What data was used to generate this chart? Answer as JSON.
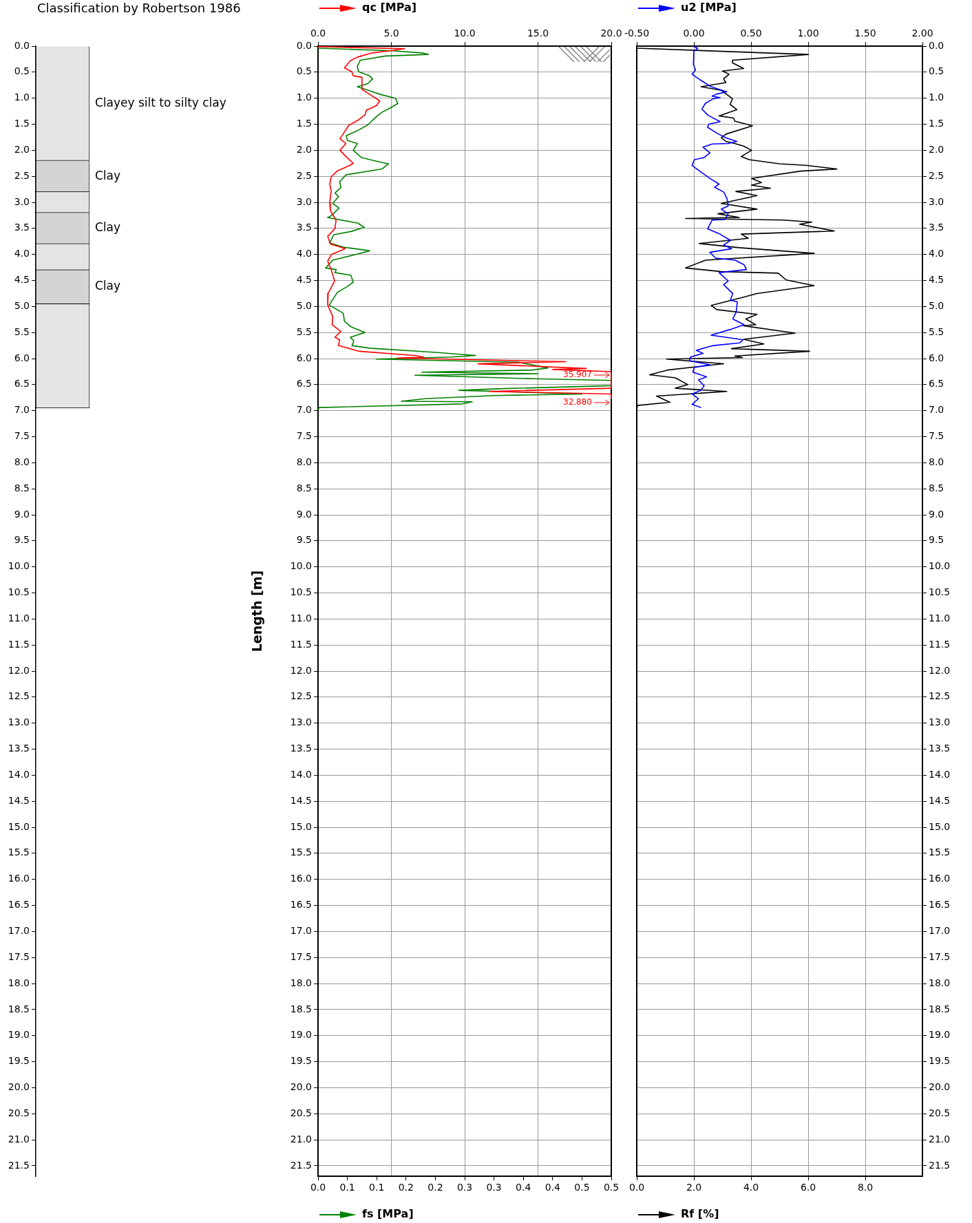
{
  "chart_data": [
    {
      "type": "bar",
      "title": "Classification by Robertson 1986",
      "categories": [
        null
      ],
      "stacked": true,
      "tick_labels": "y",
      "ylim": [
        21.7,
        0
      ],
      "yticks": [
        {
          "value": 0,
          "label": "0.0"
        },
        {
          "value": 0.5,
          "label": "0.5"
        },
        {
          "value": 1,
          "label": "1.0"
        },
        {
          "value": 1.5,
          "label": "1.5"
        },
        {
          "value": 2,
          "label": "2.0"
        },
        {
          "value": 2.5,
          "label": "2.5"
        },
        {
          "value": 3,
          "label": "3.0"
        },
        {
          "value": 3.5,
          "label": "3.5"
        },
        {
          "value": 4,
          "label": "4.0"
        },
        {
          "value": 4.5,
          "label": "4.5"
        },
        {
          "value": 5,
          "label": "5.0"
        },
        {
          "value": 5.5,
          "label": "5.5"
        },
        {
          "value": 6,
          "label": "6.0"
        },
        {
          "value": 6.5,
          "label": "6.5"
        },
        {
          "value": 7,
          "label": "7.0"
        },
        {
          "value": 7.5,
          "label": "7.5"
        },
        {
          "value": 8,
          "label": "8.0"
        },
        {
          "value": 8.5,
          "label": "8.5"
        },
        {
          "value": 9,
          "label": "9.0"
        },
        {
          "value": 9.5,
          "label": "9.5"
        },
        {
          "value": 10,
          "label": "10.0"
        },
        {
          "value": 10.5,
          "label": "10.5"
        },
        {
          "value": 11,
          "label": "11.0"
        },
        {
          "value": 11.5,
          "label": "11.5"
        },
        {
          "value": 12,
          "label": "12.0"
        },
        {
          "value": 12.5,
          "label": "12.5"
        },
        {
          "value": 13,
          "label": "13.0"
        },
        {
          "value": 13.5,
          "label": "13.5"
        },
        {
          "value": 14,
          "label": "14.0"
        },
        {
          "value": 14.5,
          "label": "14.5"
        },
        {
          "value": 15,
          "label": "15.0"
        },
        {
          "value": 15.5,
          "label": "15.5"
        },
        {
          "value": 16,
          "label": "16.0"
        },
        {
          "value": 16.5,
          "label": "16.5"
        },
        {
          "value": 17,
          "label": "17.0"
        },
        {
          "value": 17.5,
          "label": "17.5"
        },
        {
          "value": 18,
          "label": "18.0"
        },
        {
          "value": 18.5,
          "label": "18.5"
        },
        {
          "value": 19,
          "label": "19.0"
        },
        {
          "value": 19.5,
          "label": "19.5"
        },
        {
          "value": 20,
          "label": "20.0"
        },
        {
          "value": 20.5,
          "label": "20.5"
        },
        {
          "value": 21,
          "label": "21.0"
        },
        {
          "value": 21.5,
          "label": "21.5"
        }
      ],
      "series": [
        {
          "name": "Clayey silt to silty clay",
          "color": "#e4e4e4",
          "values": [
            2.2
          ]
        },
        {
          "name": "Clay",
          "color": "#d4d4d4",
          "values": [
            0.6
          ]
        },
        {
          "color": "#e4e4e4",
          "values": [
            0.4
          ]
        },
        {
          "name": "Clay",
          "color": "#d4d4d4",
          "values": [
            0.6
          ]
        },
        {
          "color": "#e4e4e4",
          "values": [
            0.5
          ]
        },
        {
          "name": "Clay",
          "color": "#d4d4d4",
          "values": [
            0.65
          ]
        },
        {
          "color": "#e4e4e4",
          "values": [
            2.0
          ]
        }
      ]
    },
    {
      "type": "line",
      "ylabel": "Length [m]",
      "ylim": [
        21.7,
        0
      ],
      "yticks": [
        {
          "value": 0,
          "label": "0.0"
        },
        {
          "value": 0.5,
          "label": "0.5"
        },
        {
          "value": 1,
          "label": "1.0"
        },
        {
          "value": 1.5,
          "label": "1.5"
        },
        {
          "value": 2,
          "label": "2.0"
        },
        {
          "value": 2.5,
          "label": "2.5"
        },
        {
          "value": 3,
          "label": "3.0"
        },
        {
          "value": 3.5,
          "label": "3.5"
        },
        {
          "value": 4,
          "label": "4.0"
        },
        {
          "value": 4.5,
          "label": "4.5"
        },
        {
          "value": 5,
          "label": "5.0"
        },
        {
          "value": 5.5,
          "label": "5.5"
        },
        {
          "value": 6,
          "label": "6.0"
        },
        {
          "value": 6.5,
          "label": "6.5"
        },
        {
          "value": 7,
          "label": "7.0"
        },
        {
          "value": 7.5,
          "label": "7.5"
        },
        {
          "value": 8,
          "label": "8.0"
        },
        {
          "value": 8.5,
          "label": "8.5"
        },
        {
          "value": 9,
          "label": "9.0"
        },
        {
          "value": 9.5,
          "label": "9.5"
        },
        {
          "value": 10,
          "label": "10.0"
        },
        {
          "value": 10.5,
          "label": "10.5"
        },
        {
          "value": 11,
          "label": "11.0"
        },
        {
          "value": 11.5,
          "label": "11.5"
        },
        {
          "value": 12,
          "label": "12.0"
        },
        {
          "value": 12.5,
          "label": "12.5"
        },
        {
          "value": 13,
          "label": "13.0"
        },
        {
          "value": 13.5,
          "label": "13.5"
        },
        {
          "value": 14,
          "label": "14.0"
        },
        {
          "value": 14.5,
          "label": "14.5"
        },
        {
          "value": 15,
          "label": "15.0"
        },
        {
          "value": 15.5,
          "label": "15.5"
        },
        {
          "value": 16,
          "label": "16.0"
        },
        {
          "value": 16.5,
          "label": "16.5"
        },
        {
          "value": 17,
          "label": "17.0"
        },
        {
          "value": 17.5,
          "label": "17.5"
        },
        {
          "value": 18,
          "label": "18.0"
        },
        {
          "value": 18.5,
          "label": "18.5"
        },
        {
          "value": 19,
          "label": "19.0"
        },
        {
          "value": 19.5,
          "label": "19.5"
        },
        {
          "value": 20,
          "label": "20.0"
        },
        {
          "value": 20.5,
          "label": "20.5"
        },
        {
          "value": 21,
          "label": "21.0"
        },
        {
          "value": 21.5,
          "label": "21.5"
        }
      ],
      "x2lim": [
        0,
        20
      ],
      "x2ticks": [
        {
          "value": 0,
          "label": "0.0"
        },
        {
          "value": 5,
          "label": "5.0"
        },
        {
          "value": 10,
          "label": "10.0"
        },
        {
          "value": 15,
          "label": "15.0"
        },
        {
          "value": 20,
          "label": "20.0"
        }
      ],
      "xlim": [
        0,
        0.5
      ],
      "xticks": [
        {
          "value": 0,
          "label": "0.0"
        },
        {
          "value": 0.05,
          "label": "0.1"
        },
        {
          "value": 0.1,
          "label": "0.1"
        },
        {
          "value": 0.15,
          "label": "0.2"
        },
        {
          "value": 0.2,
          "label": "0.2"
        },
        {
          "value": 0.25,
          "label": "0.3"
        },
        {
          "value": 0.3,
          "label": "0.3"
        },
        {
          "value": 0.35,
          "label": "0.4"
        },
        {
          "value": 0.4,
          "label": "0.4"
        },
        {
          "value": 0.45,
          "label": "0.5"
        },
        {
          "value": 0.5,
          "label": "0.5"
        }
      ],
      "grid": true,
      "legend": "top",
      "annotations": [
        "35.907",
        "32.880"
      ],
      "series": [
        {
          "name": "qc [MPa]",
          "color": "#ff0000",
          "axis": "x2",
          "x": [
            0,
            5.9,
            4.9,
            3.7,
            2.7,
            2.2,
            1.8,
            2.3,
            2.4,
            3.0,
            3.0,
            3.7,
            4.2,
            4.0,
            3.3,
            3.2,
            2.8,
            2.1,
            1.8,
            1.5,
            1.9,
            1.5,
            1.9,
            2.4,
            2.1,
            1.3,
            0.9,
            0.8,
            0.9,
            0.8,
            0.84,
            1.23,
            1.16,
            0.66,
            0.84,
            1.86,
            0.92,
            0.66,
            0.92,
            1.13,
            0.69,
            0.66,
            1.0,
            0.97,
            1.55,
            1.16,
            1.47,
            1.39,
            2.8,
            6.6,
            7.2,
            5.4,
            16.9,
            10.9,
            18.3,
            16.0,
            20,
            20,
            20,
            11.7,
            20,
            20
          ],
          "values": [
            0.01,
            0.05,
            0.09,
            0.13,
            0.21,
            0.28,
            0.42,
            0.49,
            0.57,
            0.6,
            0.83,
            0.96,
            1.05,
            1.14,
            1.23,
            1.32,
            1.41,
            1.52,
            1.65,
            1.78,
            1.87,
            2.0,
            2.12,
            2.25,
            2.3,
            2.4,
            2.51,
            2.65,
            2.78,
            3.0,
            3.16,
            3.34,
            3.5,
            3.65,
            3.8,
            3.89,
            4.0,
            4.13,
            4.31,
            4.51,
            4.75,
            4.97,
            5.19,
            5.35,
            5.48,
            5.59,
            5.64,
            5.75,
            5.86,
            5.94,
            5.97,
            5.99,
            6.06,
            6.1,
            6.19,
            6.21,
            6.25,
            6.35,
            6.57,
            6.63,
            6.68,
            6.77
          ]
        },
        {
          "name": "fs [MPa]",
          "color": "#008000",
          "x": [
            0,
            0.127,
            0.177,
            0.188,
            0.115,
            0.072,
            0.067,
            0.069,
            0.088,
            0.093,
            0.085,
            0.067,
            0.091,
            0.107,
            0.132,
            0.136,
            0.123,
            0.109,
            0.099,
            0.084,
            0.066,
            0.048,
            0.05,
            0.067,
            0.06,
            0.074,
            0.107,
            0.12,
            0.109,
            0.048,
            0.037,
            0.039,
            0.029,
            0.035,
            0.025,
            0.036,
            0.021,
            0.016,
            0.068,
            0.079,
            0.056,
            0.027,
            0.02,
            0.043,
            0.076,
            0.088,
            0.068,
            0.025,
            0.013,
            0.031,
            0.029,
            0.056,
            0.06,
            0.052,
            0.033,
            0.019,
            0.043,
            0.045,
            0.056,
            0.08,
            0.055,
            0.061,
            0.058,
            0.088,
            0.2,
            0.269,
            0.228,
            0.099,
            0.341,
            0.392,
            0.365,
            0.177,
            0.375,
            0.165,
            0.378,
            0.5,
            0.5,
            0.308,
            0.24,
            0.45,
            0.3,
            0.183,
            0.142,
            0.263,
            0.246,
            0.002,
            0
          ],
          "values": [
            0.04,
            0.09,
            0.13,
            0.16,
            0.19,
            0.27,
            0.39,
            0.49,
            0.57,
            0.63,
            0.72,
            0.78,
            0.87,
            0.93,
            1.0,
            1.1,
            1.19,
            1.27,
            1.36,
            1.52,
            1.63,
            1.72,
            1.81,
            1.87,
            2.0,
            2.14,
            2.23,
            2.26,
            2.36,
            2.47,
            2.6,
            2.71,
            2.82,
            2.89,
            3.02,
            3.11,
            3.27,
            3.29,
            3.4,
            3.48,
            3.56,
            3.62,
            3.78,
            3.86,
            3.91,
            3.93,
            3.99,
            4.11,
            4.26,
            4.29,
            4.35,
            4.4,
            4.53,
            4.6,
            4.73,
            4.97,
            5.13,
            5.28,
            5.39,
            5.5,
            5.59,
            5.66,
            5.75,
            5.8,
            5.88,
            5.94,
            5.97,
            6.01,
            6.07,
            6.18,
            6.22,
            6.26,
            6.29,
            6.32,
            6.39,
            6.42,
            6.52,
            6.58,
            6.61,
            6.68,
            6.71,
            6.77,
            6.82,
            6.83,
            6.87,
            6.94,
            6.99
          ]
        }
      ]
    },
    {
      "type": "line",
      "ylim": [
        21.7,
        0
      ],
      "yticks": [
        {
          "value": 0,
          "label": "0.0"
        },
        {
          "value": 0.5,
          "label": "0.5"
        },
        {
          "value": 1,
          "label": "1.0"
        },
        {
          "value": 1.5,
          "label": "1.5"
        },
        {
          "value": 2,
          "label": "2.0"
        },
        {
          "value": 2.5,
          "label": "2.5"
        },
        {
          "value": 3,
          "label": "3.0"
        },
        {
          "value": 3.5,
          "label": "3.5"
        },
        {
          "value": 4,
          "label": "4.0"
        },
        {
          "value": 4.5,
          "label": "4.5"
        },
        {
          "value": 5,
          "label": "5.0"
        },
        {
          "value": 5.5,
          "label": "5.5"
        },
        {
          "value": 6,
          "label": "6.0"
        },
        {
          "value": 6.5,
          "label": "6.5"
        },
        {
          "value": 7,
          "label": "7.0"
        },
        {
          "value": 7.5,
          "label": "7.5"
        },
        {
          "value": 8,
          "label": "8.0"
        },
        {
          "value": 8.5,
          "label": "8.5"
        },
        {
          "value": 9,
          "label": "9.0"
        },
        {
          "value": 9.5,
          "label": "9.5"
        },
        {
          "value": 10,
          "label": "10.0"
        },
        {
          "value": 10.5,
          "label": "10.5"
        },
        {
          "value": 11,
          "label": "11.0"
        },
        {
          "value": 11.5,
          "label": "11.5"
        },
        {
          "value": 12,
          "label": "12.0"
        },
        {
          "value": 12.5,
          "label": "12.5"
        },
        {
          "value": 13,
          "label": "13.0"
        },
        {
          "value": 13.5,
          "label": "13.5"
        },
        {
          "value": 14,
          "label": "14.0"
        },
        {
          "value": 14.5,
          "label": "14.5"
        },
        {
          "value": 15,
          "label": "15.0"
        },
        {
          "value": 15.5,
          "label": "15.5"
        },
        {
          "value": 16,
          "label": "16.0"
        },
        {
          "value": 16.5,
          "label": "16.5"
        },
        {
          "value": 17,
          "label": "17.0"
        },
        {
          "value": 17.5,
          "label": "17.5"
        },
        {
          "value": 18,
          "label": "18.0"
        },
        {
          "value": 18.5,
          "label": "18.5"
        },
        {
          "value": 19,
          "label": "19.0"
        },
        {
          "value": 19.5,
          "label": "19.5"
        },
        {
          "value": 20,
          "label": "20.0"
        },
        {
          "value": 20.5,
          "label": "20.5"
        },
        {
          "value": 21,
          "label": "21.0"
        },
        {
          "value": 21.5,
          "label": "21.5"
        }
      ],
      "x2lim": [
        -0.5,
        2
      ],
      "x2ticks": [
        {
          "value": -0.5,
          "label": "-0.50"
        },
        {
          "value": 0,
          "label": "0.00"
        },
        {
          "value": 0.5,
          "label": "0.50"
        },
        {
          "value": 1,
          "label": "1.00"
        },
        {
          "value": 1.5,
          "label": "1.50"
        },
        {
          "value": 2,
          "label": "2.00"
        }
      ],
      "xlim": [
        0,
        10
      ],
      "xticks": [
        {
          "value": 0,
          "label": "0.0"
        },
        {
          "value": 2,
          "label": "2.0"
        },
        {
          "value": 4,
          "label": "4.0"
        },
        {
          "value": 6,
          "label": "6.0"
        },
        {
          "value": 8,
          "label": "8.0"
        }
      ],
      "grid": true,
      "legend": "top",
      "series": [
        {
          "name": "u2 [MPa]",
          "color": "#0000ff",
          "axis": "x2",
          "x": [
            0,
            0.033,
            0,
            -0.004,
            0.014,
            -0.016,
            0.043,
            0.141,
            0.219,
            0.288,
            0.2,
            0.16,
            0.23,
            0.17,
            0.1,
            0.07,
            0.12,
            0.15,
            0.23,
            0.13,
            0.12,
            0.2,
            0.28,
            0.376,
            0.3,
            0.16,
            0.08,
            0.14,
            0.09,
            0.004,
            -0.016,
            0.063,
            0.14,
            0.22,
            0.18,
            0.26,
            0.29,
            0.3,
            0.24,
            0.3,
            0.27,
            0.16,
            0.12,
            0.22,
            0.32,
            0.26,
            0.33,
            0.14,
            0.19,
            0.36,
            0.44,
            0.46,
            0.22,
            0.3,
            0.26,
            0.34,
            0.32,
            0.38,
            0.37,
            0.34,
            0.44,
            0.32,
            0.15,
            0.34,
            0.43,
            0.4,
            0.17,
            0.02,
            0.08,
            -0.03,
            -0.04,
            0.14,
            0.004,
            -0.01,
            0.11,
            0.04,
            0.09,
            0.06,
            -0.016,
            0.04,
            -0.016,
            0.063
          ],
          "values": [
            0.01,
            0.04,
            0.1,
            0.35,
            0.46,
            0.54,
            0.63,
            0.77,
            0.83,
            0.88,
            0.92,
            0.96,
            0.99,
            1.01,
            1.1,
            1.21,
            1.32,
            1.36,
            1.45,
            1.5,
            1.56,
            1.67,
            1.76,
            1.83,
            1.87,
            1.88,
            1.94,
            2.05,
            2.14,
            2.18,
            2.29,
            2.42,
            2.54,
            2.65,
            2.71,
            2.8,
            2.93,
            3.07,
            3.13,
            3.22,
            3.33,
            3.34,
            3.51,
            3.6,
            3.73,
            3.82,
            3.89,
            3.96,
            4.07,
            4.11,
            4.2,
            4.29,
            4.35,
            4.51,
            4.58,
            4.75,
            4.88,
            4.91,
            5.11,
            5.24,
            5.35,
            5.44,
            5.55,
            5.61,
            5.64,
            5.7,
            5.75,
            5.84,
            5.9,
            5.97,
            6.04,
            6.12,
            6.17,
            6.26,
            6.35,
            6.41,
            6.52,
            6.61,
            6.68,
            6.77,
            6.88,
            6.94
          ]
        },
        {
          "name": "Rf [%]",
          "color": "#000000",
          "x": [
            0,
            0,
            6.01,
            3.35,
            3.35,
            3.74,
            3.0,
            3.23,
            3.04,
            3.12,
            2.25,
            2.96,
            3.35,
            3.27,
            3.51,
            2.88,
            3.39,
            3.43,
            4.05,
            3.12,
            2.96,
            3.12,
            3.43,
            3.74,
            4.02,
            3.66,
            3.94,
            5.0,
            5.93,
            7.0,
            5.74,
            4.02,
            4.37,
            4.02,
            4.68,
            3.47,
            4.21,
            2.96,
            4.21,
            2.84,
            3.59,
            1.71,
            5.15,
            6.13,
            5.7,
            6.91,
            3.66,
            3.9,
            2.18,
            3.59,
            6.21,
            2.41,
            1.71,
            2.96,
            4.95,
            5.23,
            6.21,
            4.21,
            3.74,
            2.61,
            2.8,
            4.21,
            3.82,
            4.17,
            3.74,
            5.54,
            3.74,
            4.45,
            3.31,
            6.05,
            3.43,
            3.7,
            1.04,
            3.04,
            1.08,
            0.45,
            1.35,
            1.79,
            1.35,
            3.15,
            0.69,
            1.16,
            0.02,
            0
          ],
          "values": [
            0.01,
            0.04,
            0.16,
            0.27,
            0.32,
            0.43,
            0.48,
            0.54,
            0.63,
            0.7,
            0.78,
            0.85,
            1.01,
            1.12,
            1.22,
            1.34,
            1.38,
            1.44,
            1.53,
            1.69,
            1.76,
            1.83,
            1.87,
            1.92,
            2.0,
            2.12,
            2.18,
            2.26,
            2.29,
            2.36,
            2.4,
            2.54,
            2.62,
            2.67,
            2.73,
            2.79,
            2.87,
            3.02,
            3.13,
            3.22,
            3.29,
            3.31,
            3.34,
            3.38,
            3.42,
            3.55,
            3.61,
            3.69,
            3.79,
            3.87,
            3.98,
            4.11,
            4.26,
            4.33,
            4.36,
            4.49,
            4.6,
            4.75,
            4.82,
            4.98,
            5.06,
            5.15,
            5.24,
            5.35,
            5.37,
            5.51,
            5.63,
            5.72,
            5.81,
            5.86,
            5.95,
            5.98,
            6.01,
            6.1,
            6.22,
            6.31,
            6.37,
            6.5,
            6.57,
            6.63,
            6.72,
            6.84,
            6.9,
            7.0
          ]
        }
      ]
    }
  ]
}
